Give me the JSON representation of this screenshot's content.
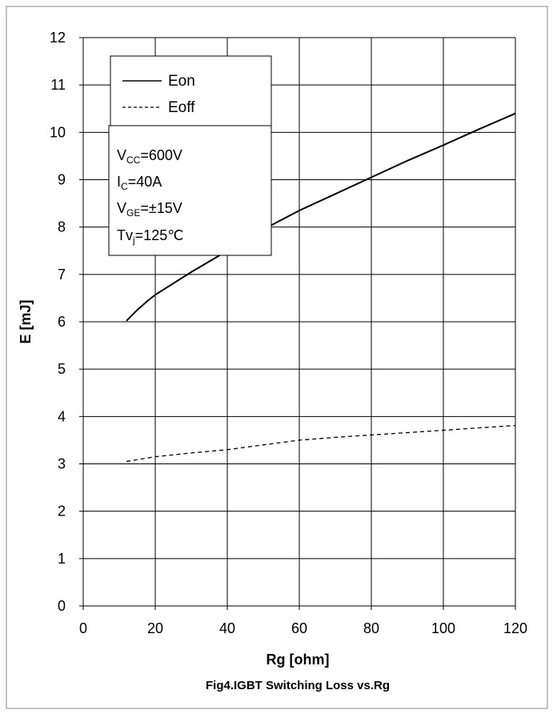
{
  "chart_data": {
    "type": "line",
    "xlabel": "Rg  [ohm]",
    "ylabel": "E  [mJ]",
    "caption": "Fig4.IGBT Switching Loss vs.Rg",
    "xlim": [
      0,
      120
    ],
    "ylim": [
      0,
      12
    ],
    "x_ticks": [
      0,
      20,
      40,
      60,
      80,
      100,
      120
    ],
    "y_ticks": [
      0,
      1,
      2,
      3,
      4,
      5,
      6,
      7,
      8,
      9,
      10,
      11,
      12
    ],
    "grid": true,
    "legend_position": "top-left",
    "series": [
      {
        "name": "Eon",
        "style": "solid",
        "x": [
          12,
          15,
          18,
          20,
          30,
          40,
          50,
          60,
          70,
          80,
          90,
          100,
          110,
          120
        ],
        "y": [
          6.02,
          6.25,
          6.45,
          6.57,
          7.05,
          7.5,
          7.95,
          8.35,
          8.7,
          9.05,
          9.4,
          9.73,
          10.07,
          10.4
        ]
      },
      {
        "name": "Eoff",
        "style": "dashed",
        "x": [
          12,
          20,
          30,
          40,
          50,
          60,
          70,
          80,
          90,
          100,
          110,
          120
        ],
        "y": [
          3.05,
          3.15,
          3.23,
          3.3,
          3.4,
          3.5,
          3.56,
          3.61,
          3.66,
          3.71,
          3.76,
          3.81
        ]
      }
    ],
    "conditions": {
      "vcc": {
        "base": "V",
        "sub": "CC",
        "rest": "=600V"
      },
      "ic": {
        "base": "I",
        "sub": "C",
        "rest": "=40A"
      },
      "vge": {
        "base": "V",
        "sub": "GE",
        "rest": "=±15V"
      },
      "tvj": {
        "base": "Tv",
        "sub": "j",
        "rest": "=125℃"
      }
    }
  }
}
